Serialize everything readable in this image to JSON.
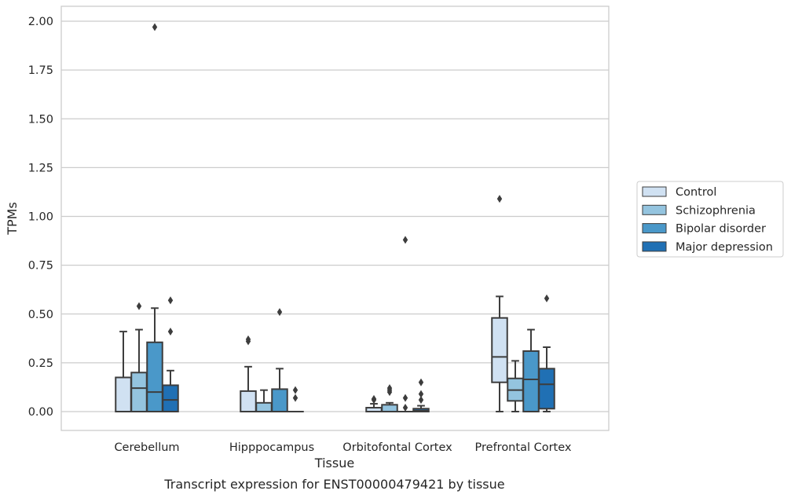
{
  "chart_data": {
    "type": "boxplot",
    "title": "",
    "caption": "Transcript expression for ENST00000479421 by tissue",
    "xlabel": "Tissue",
    "ylabel": "TPMs",
    "ylim": [
      -0.1,
      2.07
    ],
    "yticks": [
      "0.00",
      "0.25",
      "0.50",
      "0.75",
      "1.00",
      "1.25",
      "1.50",
      "1.75",
      "2.00"
    ],
    "ytick_values": [
      0,
      0.25,
      0.5,
      0.75,
      1.0,
      1.25,
      1.5,
      1.75,
      2.0
    ],
    "grid": "horizontal",
    "legend_position": "right",
    "categories": [
      "Cerebellum",
      "Hipppocampus",
      "Orbitofontal Cortex",
      "Prefrontal Cortex"
    ],
    "series": [
      {
        "name": "Control",
        "color": "#d0e1f2",
        "boxes": [
          {
            "q1": 0.0,
            "median": 0.0,
            "q3": 0.175,
            "whisker_low": 0.0,
            "whisker_high": 0.41,
            "outliers": []
          },
          {
            "q1": 0.0,
            "median": 0.0,
            "q3": 0.105,
            "whisker_low": 0.0,
            "whisker_high": 0.23,
            "outliers": [
              0.36,
              0.37
            ]
          },
          {
            "q1": 0.0,
            "median": 0.0,
            "q3": 0.02,
            "whisker_low": 0.0,
            "whisker_high": 0.04,
            "outliers": [
              0.06,
              0.065
            ]
          },
          {
            "q1": 0.15,
            "median": 0.28,
            "q3": 0.48,
            "whisker_low": 0.0,
            "whisker_high": 0.59,
            "outliers": [
              1.09
            ]
          }
        ]
      },
      {
        "name": "Schizophrenia",
        "color": "#94c4df",
        "boxes": [
          {
            "q1": 0.0,
            "median": 0.12,
            "q3": 0.2,
            "whisker_low": 0.0,
            "whisker_high": 0.42,
            "outliers": [
              0.54
            ]
          },
          {
            "q1": 0.0,
            "median": 0.0,
            "q3": 0.045,
            "whisker_low": 0.0,
            "whisker_high": 0.11,
            "outliers": []
          },
          {
            "q1": 0.0,
            "median": 0.0,
            "q3": 0.035,
            "whisker_low": 0.0,
            "whisker_high": 0.045,
            "outliers": [
              0.1,
              0.11,
              0.12
            ]
          },
          {
            "q1": 0.055,
            "median": 0.11,
            "q3": 0.17,
            "whisker_low": 0.0,
            "whisker_high": 0.26,
            "outliers": []
          }
        ]
      },
      {
        "name": "Bipolar disorder",
        "color": "#4a98c9",
        "boxes": [
          {
            "q1": 0.0,
            "median": 0.1,
            "q3": 0.355,
            "whisker_low": 0.0,
            "whisker_high": 0.53,
            "outliers": [
              1.97
            ]
          },
          {
            "q1": 0.0,
            "median": 0.0,
            "q3": 0.115,
            "whisker_low": 0.0,
            "whisker_high": 0.22,
            "outliers": [
              0.51
            ]
          },
          {
            "q1": 0.0,
            "median": 0.0,
            "q3": 0.0,
            "whisker_low": 0.0,
            "whisker_high": 0.0,
            "outliers": [
              0.02,
              0.07,
              0.88
            ]
          },
          {
            "q1": 0.0,
            "median": 0.165,
            "q3": 0.31,
            "whisker_low": 0.0,
            "whisker_high": 0.42,
            "outliers": []
          }
        ]
      },
      {
        "name": "Major depression",
        "color": "#2070b4",
        "boxes": [
          {
            "q1": 0.0,
            "median": 0.06,
            "q3": 0.135,
            "whisker_low": 0.0,
            "whisker_high": 0.21,
            "outliers": [
              0.41,
              0.57
            ]
          },
          {
            "q1": 0.0,
            "median": 0.0,
            "q3": 0.0,
            "whisker_low": 0.0,
            "whisker_high": 0.0,
            "outliers": [
              0.07,
              0.11
            ]
          },
          {
            "q1": 0.0,
            "median": 0.005,
            "q3": 0.015,
            "whisker_low": 0.0,
            "whisker_high": 0.03,
            "outliers": [
              0.06,
              0.09,
              0.15
            ]
          },
          {
            "q1": 0.015,
            "median": 0.14,
            "q3": 0.22,
            "whisker_low": 0.0,
            "whisker_high": 0.33,
            "outliers": [
              0.58
            ]
          }
        ]
      }
    ]
  }
}
